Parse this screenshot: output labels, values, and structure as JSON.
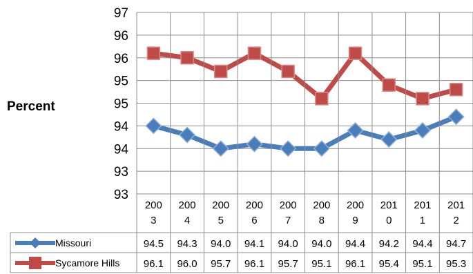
{
  "chart_data": {
    "type": "line",
    "ylabel": "Percent",
    "categories": [
      "2003",
      "2004",
      "2005",
      "2006",
      "2007",
      "2008",
      "2009",
      "2010",
      "2011",
      "2012"
    ],
    "category_display": [
      [
        "200",
        "3"
      ],
      [
        "200",
        "4"
      ],
      [
        "200",
        "5"
      ],
      [
        "200",
        "6"
      ],
      [
        "200",
        "7"
      ],
      [
        "200",
        "8"
      ],
      [
        "200",
        "9"
      ],
      [
        "201",
        "0"
      ],
      [
        "201",
        "1"
      ],
      [
        "201",
        "2"
      ]
    ],
    "yticks": [
      "97",
      "96",
      "96",
      "95",
      "95",
      "94",
      "94",
      "93",
      "93"
    ],
    "ylim": [
      93,
      97
    ],
    "grid": true,
    "legend": "data table",
    "series": [
      {
        "name": "Missouri",
        "color": "#4a7ebb",
        "marker": "diamond",
        "values": [
          94.5,
          94.3,
          94.0,
          94.1,
          94.0,
          94.0,
          94.4,
          94.2,
          94.4,
          94.7
        ],
        "labels": [
          "94.5",
          "94.3",
          "94.0",
          "94.1",
          "94.0",
          "94.0",
          "94.4",
          "94.2",
          "94.4",
          "94.7"
        ]
      },
      {
        "name": "Sycamore Hills",
        "color": "#be4b48",
        "marker": "square",
        "values": [
          96.1,
          96.0,
          95.7,
          96.1,
          95.7,
          95.1,
          96.1,
          95.4,
          95.1,
          95.3
        ],
        "labels": [
          "96.1",
          "96.0",
          "95.7",
          "96.1",
          "95.7",
          "95.1",
          "96.1",
          "95.4",
          "95.1",
          "95.3"
        ]
      }
    ]
  }
}
